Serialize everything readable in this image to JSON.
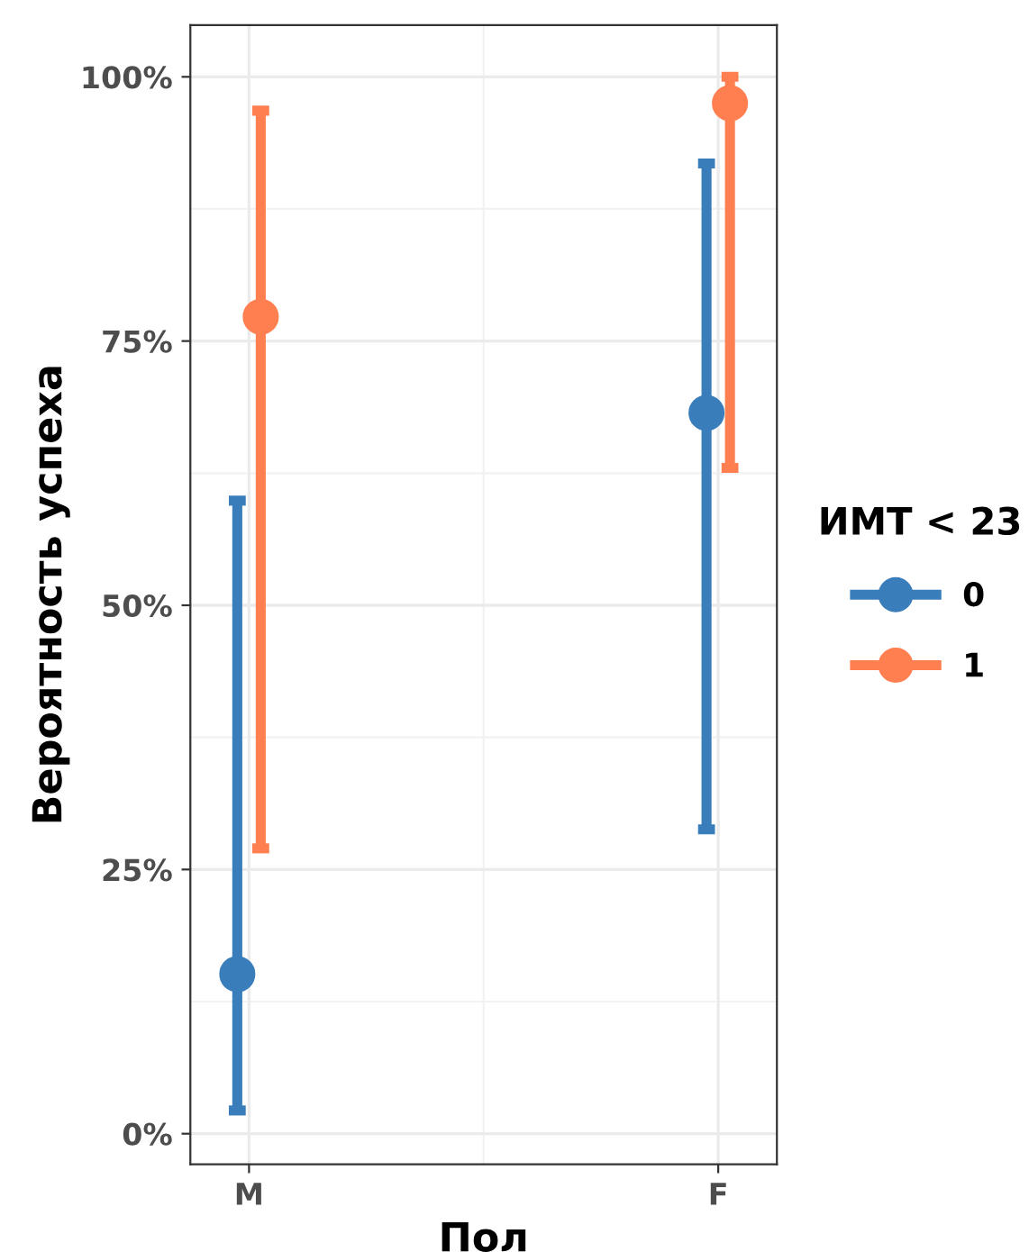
{
  "chart_data": {
    "type": "scatter",
    "xlabel": "Пол",
    "ylabel": "Вероятность успеха",
    "legend_title": "ИМТ < 23",
    "categories": [
      "M",
      "F"
    ],
    "series": [
      {
        "name": "0",
        "color": "#3a7dbb",
        "values": [
          15.1,
          68.2
        ],
        "errors": [
          [
            2.2,
            59.9
          ],
          [
            28.8,
            91.8
          ]
        ]
      },
      {
        "name": "1",
        "color": "#ff7f50",
        "values": [
          77.3,
          97.5
        ],
        "errors": [
          [
            27.0,
            96.8
          ],
          [
            63.0,
            100
          ]
        ]
      }
    ],
    "ylim": [
      -2.9,
      104.9
    ],
    "yticks": [
      {
        "value": 0,
        "label": "0%"
      },
      {
        "value": 25,
        "label": "25%"
      },
      {
        "value": 50,
        "label": "50%"
      },
      {
        "value": 75,
        "label": "75%"
      },
      {
        "value": 100,
        "label": "100%"
      }
    ],
    "grid": true,
    "legend": "right",
    "marker": "circle"
  }
}
